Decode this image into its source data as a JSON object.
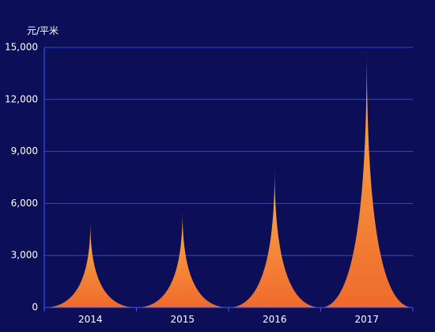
{
  "chart_data": {
    "type": "area",
    "ylabel": "元/平米",
    "categories": [
      "2014",
      "2015",
      "2016",
      "2017"
    ],
    "values": [
      4900,
      5500,
      8000,
      14900
    ],
    "ylim": [
      0,
      15000
    ],
    "yticks": [
      0,
      3000,
      6000,
      9000,
      12000,
      15000
    ],
    "ytick_labels": [
      "0",
      "3,000",
      "6,000",
      "9,000",
      "12,000",
      "15,000"
    ],
    "grid": true,
    "colors": {
      "background": "#0c0f57",
      "grid": "#2a4bd6",
      "axis": "#3a5bff",
      "fill_top": "#f7b24a",
      "fill_bottom": "#f06a2c"
    }
  }
}
